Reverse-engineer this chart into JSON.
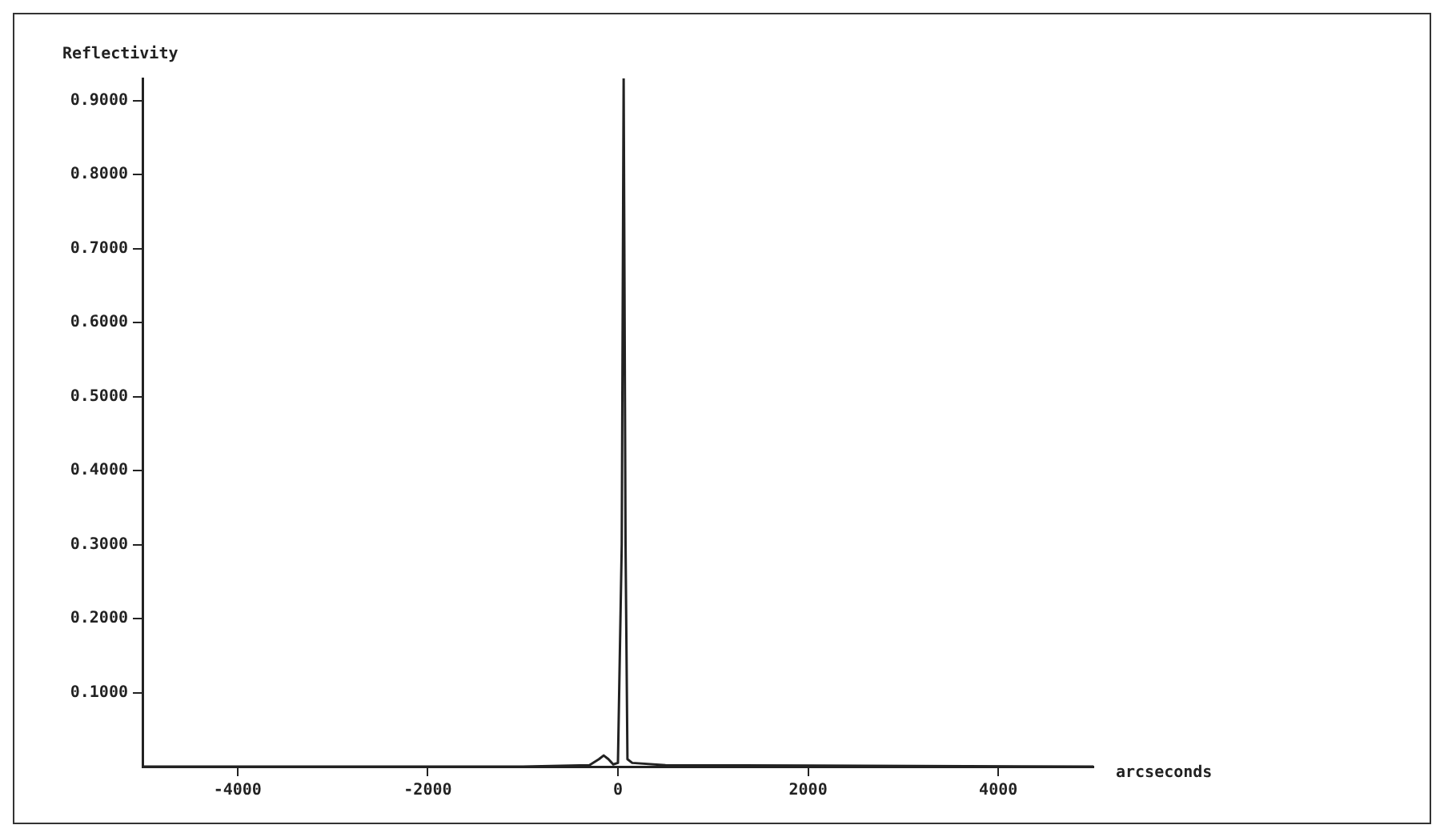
{
  "chart_data": {
    "type": "line",
    "ylabel": "Reflectivity",
    "xlabel": "arcseconds",
    "x": [
      -5000,
      -1000,
      -300,
      -200,
      -150,
      -100,
      -50,
      0,
      40,
      60,
      80,
      100,
      150,
      500,
      5000
    ],
    "series": [
      {
        "color": "#222222",
        "values": [
          0,
          0,
          0.002,
          0.01,
          0.015,
          0.01,
          0.003,
          0.005,
          0.3,
          0.93,
          0.3,
          0.01,
          0.005,
          0.002,
          0
        ]
      }
    ],
    "xlim": [
      -5000,
      5000
    ],
    "ylim": [
      0,
      0.93
    ],
    "xticks": [
      -4000,
      -2000,
      0,
      2000,
      4000
    ],
    "yticks": [
      {
        "value": 0.1,
        "label": "0.1000"
      },
      {
        "value": 0.2,
        "label": "0.2000"
      },
      {
        "value": 0.3,
        "label": "0.3000"
      },
      {
        "value": 0.4,
        "label": "0.4000"
      },
      {
        "value": 0.5,
        "label": "0.5000"
      },
      {
        "value": 0.6,
        "label": "0.6000"
      },
      {
        "value": 0.7,
        "label": "0.7000"
      },
      {
        "value": 0.8,
        "label": "0.8000"
      },
      {
        "value": 0.9,
        "label": "0.9000"
      }
    ],
    "grid": false,
    "legend": false,
    "marker": "none",
    "line_style": "solid"
  }
}
